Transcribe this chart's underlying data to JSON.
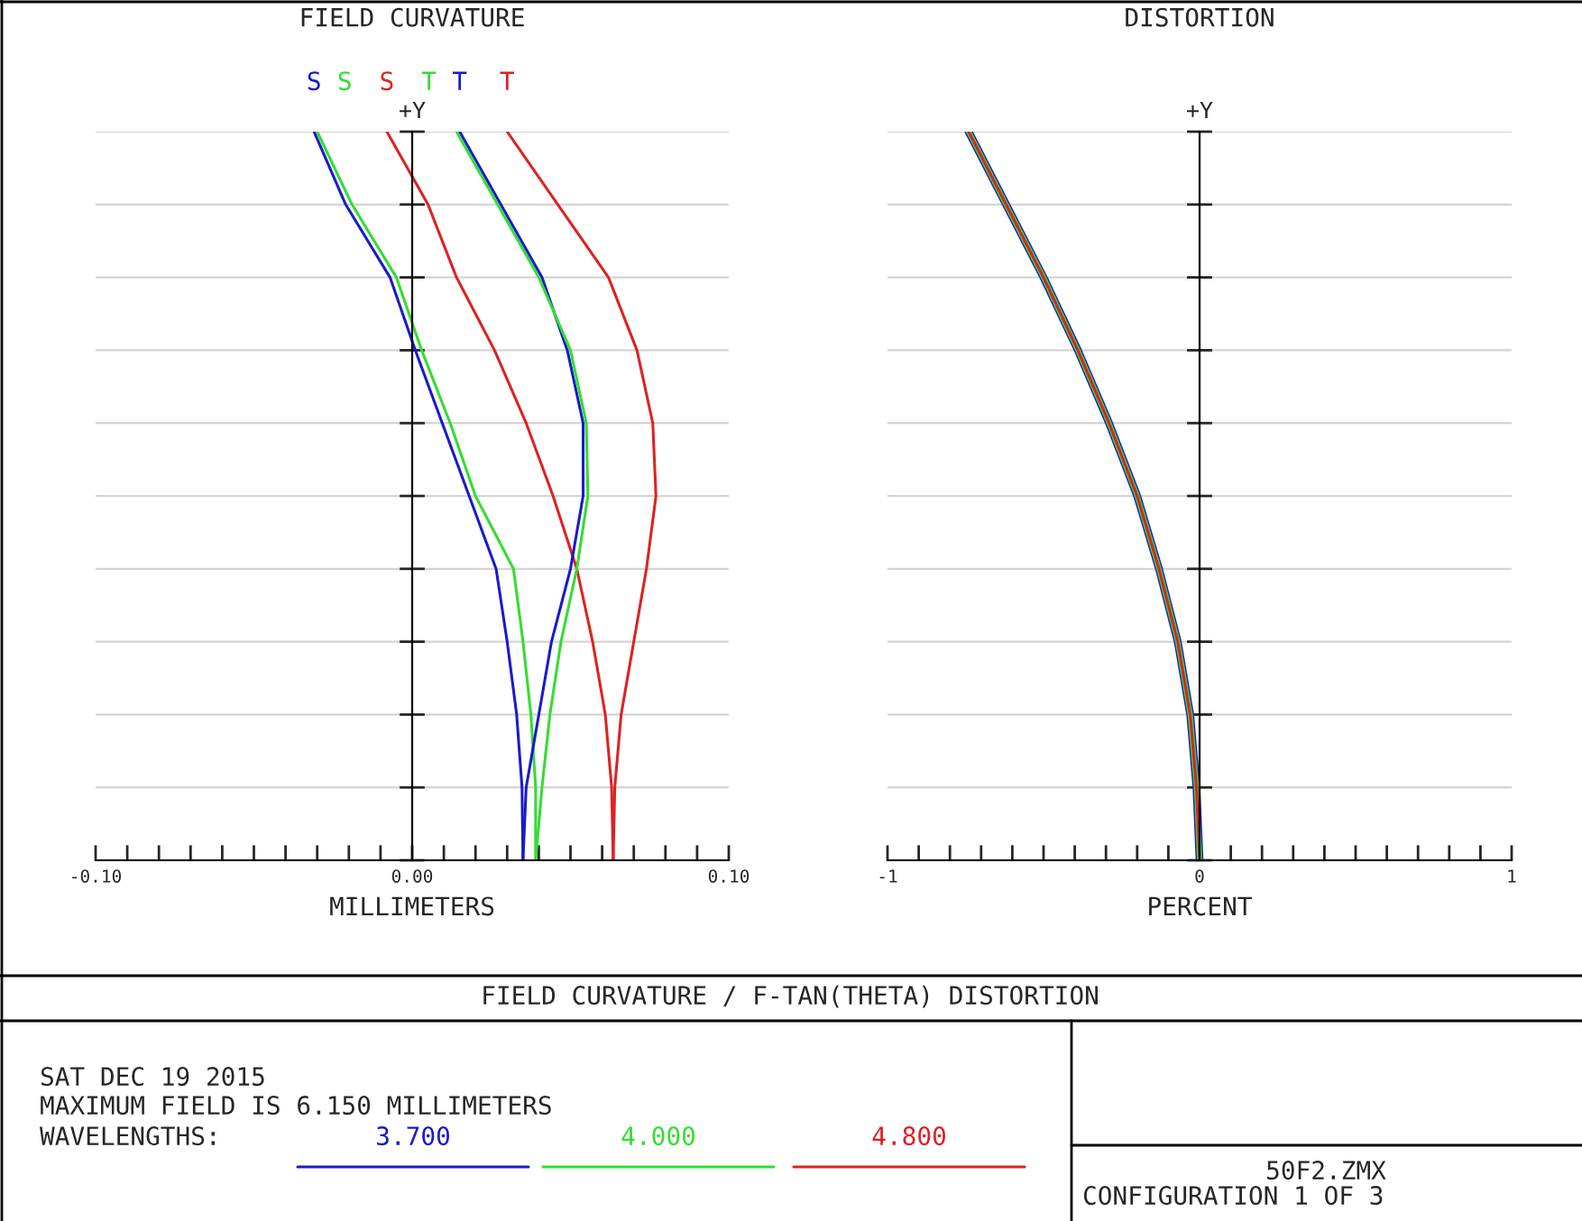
{
  "chart_data": [
    {
      "type": "line",
      "orientation": "horizontal",
      "title": "FIELD CURVATURE",
      "xlabel": "MILLIMETERS",
      "ylabel": "+Y",
      "categories": [
        null,
        null,
        null,
        null,
        null,
        null,
        null,
        null,
        null,
        null,
        null
      ],
      "series": [
        {
          "name": "S",
          "color": "#1a1acc",
          "values": [
            -0.031,
            -0.021,
            -0.007,
            0.001,
            0.0095,
            0.018,
            0.0265,
            0.03,
            0.033,
            0.0347,
            0.035
          ]
        },
        {
          "name": "S",
          "color": "#33dd33",
          "values": [
            -0.03,
            -0.019,
            -0.005,
            0.003,
            0.012,
            0.02,
            0.032,
            0.035,
            0.0375,
            0.039,
            0.039
          ]
        },
        {
          "name": "S",
          "color": "#dd2222",
          "values": [
            -0.008,
            0.005,
            0.014,
            0.026,
            0.036,
            0.0445,
            0.052,
            0.057,
            0.061,
            0.063,
            0.0635
          ]
        },
        {
          "name": "T",
          "color": "#1a1acc",
          "values": [
            0.015,
            0.028,
            0.041,
            0.049,
            0.054,
            0.054,
            0.05,
            0.044,
            0.04,
            0.036,
            0.035
          ]
        },
        {
          "name": "T",
          "color": "#33dd33",
          "values": [
            0.014,
            0.027,
            0.04,
            0.05,
            0.055,
            0.0555,
            0.052,
            0.047,
            0.0435,
            0.041,
            0.039
          ]
        },
        {
          "name": "T",
          "color": "#dd2222",
          "values": [
            0.03,
            0.046,
            0.062,
            0.071,
            0.076,
            0.077,
            0.074,
            0.07,
            0.066,
            0.064,
            0.0635
          ]
        }
      ],
      "xlim": [
        -0.1,
        0.1
      ],
      "xticks": [
        {
          "value": -0.1,
          "label": "-0.10"
        },
        {
          "value": -0.09,
          "label": null
        },
        {
          "value": -0.08,
          "label": null
        },
        {
          "value": -0.07,
          "label": null
        },
        {
          "value": -0.06,
          "label": null
        },
        {
          "value": -0.05,
          "label": null
        },
        {
          "value": -0.04,
          "label": null
        },
        {
          "value": -0.03,
          "label": null
        },
        {
          "value": -0.02,
          "label": null
        },
        {
          "value": -0.01,
          "label": null
        },
        {
          "value": 0,
          "label": "0.00"
        },
        {
          "value": 0.01,
          "label": null
        },
        {
          "value": 0.02,
          "label": null
        },
        {
          "value": 0.03,
          "label": null
        },
        {
          "value": 0.04,
          "label": null
        },
        {
          "value": 0.05,
          "label": null
        },
        {
          "value": 0.06,
          "label": null
        },
        {
          "value": 0.07,
          "label": null
        },
        {
          "value": 0.08,
          "label": null
        },
        {
          "value": 0.09,
          "label": null
        },
        {
          "value": 0.1,
          "label": "0.10"
        }
      ],
      "grid": true,
      "tick_labels": "x",
      "annotations": [
        "FIELD CURVATURE / F-TAN(THETA) DISTORTION",
        "SAT DEC 19 2015",
        "MAXIMUM FIELD IS 6.150 MILLIMETERS",
        "50F2.ZMX",
        "CONFIGURATION 1 OF 3"
      ]
    },
    {
      "type": "line",
      "orientation": "horizontal",
      "title": "DISTORTION",
      "xlabel": "PERCENT",
      "ylabel": "+Y",
      "legend_title": "WAVELENGTHS:",
      "categories": [
        null,
        null,
        null,
        null,
        null,
        null,
        null,
        null,
        null,
        null,
        null
      ],
      "series": [
        {
          "name": "3.700",
          "color": "#1a1acc",
          "values": [
            -0.74,
            -0.62,
            -0.5,
            -0.39,
            -0.29,
            -0.2,
            -0.13,
            -0.07,
            -0.03,
            -0.01,
            0
          ]
        },
        {
          "name": "4.000",
          "color": "#33dd33",
          "values": [
            -0.74,
            -0.62,
            -0.5,
            -0.39,
            -0.29,
            -0.2,
            -0.13,
            -0.07,
            -0.03,
            -0.01,
            0
          ]
        },
        {
          "name": "4.800",
          "color": "#dd2222",
          "values": [
            -0.74,
            -0.62,
            -0.5,
            -0.39,
            -0.29,
            -0.2,
            -0.13,
            -0.07,
            -0.03,
            -0.01,
            0
          ]
        }
      ],
      "xlim": [
        -1,
        1
      ],
      "xticks": [
        {
          "value": -1,
          "label": "-1"
        },
        {
          "value": -0.9,
          "label": null
        },
        {
          "value": -0.8,
          "label": null
        },
        {
          "value": -0.7,
          "label": null
        },
        {
          "value": -0.6,
          "label": null
        },
        {
          "value": -0.5,
          "label": null
        },
        {
          "value": -0.4,
          "label": null
        },
        {
          "value": -0.3,
          "label": null
        },
        {
          "value": -0.2,
          "label": null
        },
        {
          "value": -0.1,
          "label": null
        },
        {
          "value": 0,
          "label": "0"
        },
        {
          "value": 0.1,
          "label": null
        },
        {
          "value": 0.2,
          "label": null
        },
        {
          "value": 0.3,
          "label": null
        },
        {
          "value": 0.4,
          "label": null
        },
        {
          "value": 0.5,
          "label": null
        },
        {
          "value": 0.6,
          "label": null
        },
        {
          "value": 0.7,
          "label": null
        },
        {
          "value": 0.8,
          "label": null
        },
        {
          "value": 0.9,
          "label": null
        },
        {
          "value": 1,
          "label": "1"
        }
      ],
      "grid": true,
      "tick_labels": "x",
      "legend": "bottom"
    }
  ]
}
